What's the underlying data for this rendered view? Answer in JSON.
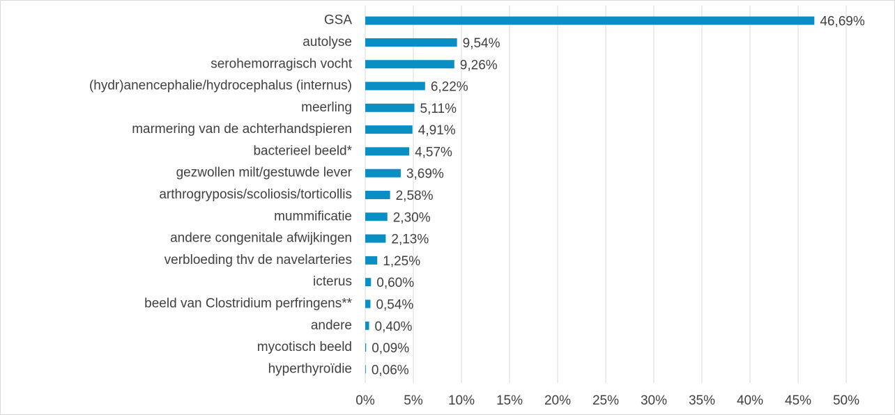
{
  "chart_data": {
    "type": "hbar",
    "color": "#0a8fc4",
    "grid": true,
    "categories": [
      "GSA",
      "autolyse",
      "serohemorragisch vocht",
      "(hydr)anencephalie/hydrocephalus (internus)",
      "meerling",
      "marmering van de achterhandspieren",
      "bacterieel beeld*",
      "gezwollen milt/gestuwde lever",
      "arthrogryposis/scoliosis/torticollis",
      "mummificatie",
      "andere congenitale afwijkingen",
      "verbloeding thv de navelarteries",
      "icterus",
      "beeld van Clostridium perfringens**",
      "andere",
      "mycotisch beeld",
      "hyperthyroïdie"
    ],
    "values": [
      46.69,
      9.54,
      9.26,
      6.22,
      5.11,
      4.91,
      4.57,
      3.69,
      2.58,
      2.3,
      2.13,
      1.25,
      0.6,
      0.54,
      0.4,
      0.09,
      0.06
    ],
    "value_labels": [
      "46,69%",
      "9,54%",
      "9,26%",
      "6,22%",
      "5,11%",
      "4,91%",
      "4,57%",
      "3,69%",
      "2,58%",
      "2,30%",
      "2,13%",
      "1,25%",
      "0,60%",
      "0,54%",
      "0,40%",
      "0,09%",
      "0,06%"
    ],
    "xlim": [
      0,
      50
    ],
    "xticks": [
      {
        "value": 0,
        "label": "0%"
      },
      {
        "value": 5,
        "label": "5%"
      },
      {
        "value": 10,
        "label": "10%"
      },
      {
        "value": 15,
        "label": "15%"
      },
      {
        "value": 20,
        "label": "20%"
      },
      {
        "value": 25,
        "label": "25%"
      },
      {
        "value": 30,
        "label": "30%"
      },
      {
        "value": 35,
        "label": "35%"
      },
      {
        "value": 40,
        "label": "40%"
      },
      {
        "value": 45,
        "label": "45%"
      },
      {
        "value": 50,
        "label": "50%"
      }
    ]
  }
}
